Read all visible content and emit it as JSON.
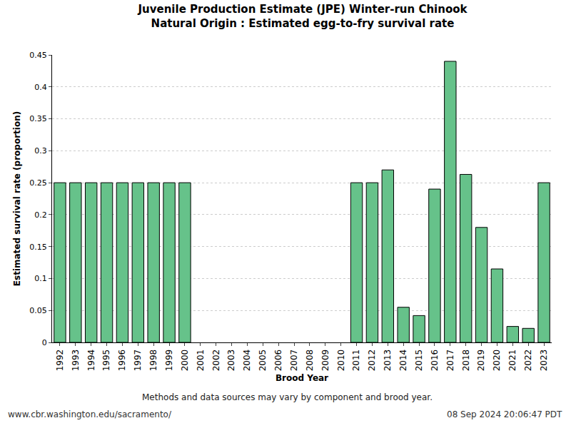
{
  "chart_data": {
    "type": "bar",
    "title": "Juvenile Production Estimate (JPE) Winter-run Chinook",
    "subtitle": "Natural Origin : Estimated egg-to-fry survival rate",
    "x_label": "Brood Year",
    "y_label": "Estimated survival rate (proportion)",
    "categories": [
      "1992",
      "1993",
      "1994",
      "1995",
      "1996",
      "1997",
      "1998",
      "1999",
      "2000",
      "2001",
      "2002",
      "2003",
      "2004",
      "2005",
      "2006",
      "2007",
      "2008",
      "2009",
      "2010",
      "2011",
      "2012",
      "2013",
      "2014",
      "2015",
      "2016",
      "2017",
      "2018",
      "2019",
      "2020",
      "2021",
      "2022",
      "2023"
    ],
    "values": [
      0.25,
      0.25,
      0.25,
      0.25,
      0.25,
      0.25,
      0.25,
      0.25,
      0.25,
      null,
      null,
      null,
      null,
      null,
      null,
      null,
      null,
      null,
      null,
      0.25,
      0.25,
      0.27,
      0.055,
      0.042,
      0.24,
      0.44,
      0.263,
      0.18,
      0.115,
      0.025,
      0.022,
      0.25
    ],
    "color": "#66c28a",
    "ylim": [
      0,
      0.45
    ],
    "yticks": [
      0,
      0.05,
      0.1,
      0.15,
      0.2,
      0.25,
      0.3,
      0.35,
      0.4,
      0.45
    ],
    "grid": true,
    "annotations": [
      "Methods and data sources may vary by component and brood year.",
      "www.cbr.washington.edu/sacramento/",
      "08 Sep 2024 20:06:47 PDT"
    ]
  }
}
